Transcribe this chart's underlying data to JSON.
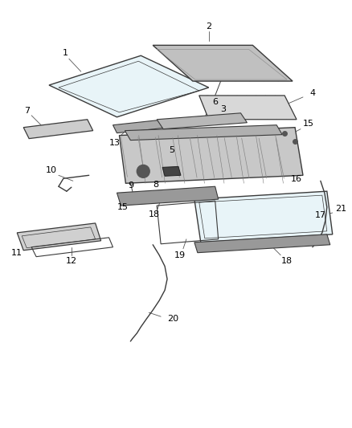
{
  "bg_color": "#ffffff",
  "line_color": "#3a3a3a",
  "fig_width": 4.38,
  "fig_height": 5.33,
  "dpi": 100
}
